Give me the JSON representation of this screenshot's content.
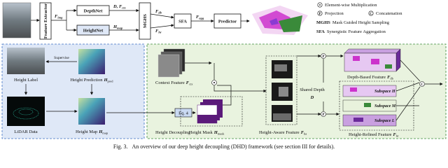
{
  "top": {
    "nodes": {
      "feature_extractor": "Feature Extractor",
      "depthnet": "DepthNet",
      "heightnet": "HeightNet",
      "mghs": "MGHS",
      "sfa": "SFA",
      "predictor": "Predictor"
    },
    "edges": [
      {
        "main": "F",
        "sub": "img"
      },
      {
        "main": "D, F",
        "sub": "ctx"
      },
      {
        "main": "H",
        "sub": "map"
      },
      {
        "main": "F",
        "sub": "db"
      },
      {
        "main": "F",
        "sub": "hr"
      },
      {
        "main": "F",
        "sub": "agg"
      }
    ]
  },
  "legend": {
    "multiplication": "Element-wise Multiplication",
    "projection": {
      "symbol": "P",
      "text": "Projection"
    },
    "concatenation": {
      "symbol": "C",
      "text": "Concatenation"
    },
    "mghs": {
      "abbr": "MGHS",
      "text": "Mask Guided Height Sampling"
    },
    "sfa": {
      "abbr": "SFA",
      "text": "Synergistic Feature Aggregation"
    }
  },
  "left": {
    "height_label": "Height Label",
    "supervise": "Supervise",
    "height_prediction": {
      "text": "Height Prediction",
      "main": "H",
      "sub": "pred"
    },
    "lidar": "LiDAR Data",
    "height_map": {
      "text": "Height Map",
      "main": "H",
      "sub": "map"
    }
  },
  "right": {
    "context": {
      "text": "Context Feature",
      "main": "F",
      "sub": "ctx"
    },
    "eq": "Eq. 4",
    "decoupling": "Height Decoupling",
    "mask": {
      "text": "Height Mask",
      "main": "H",
      "sub": "mask"
    },
    "aware": {
      "text": "Height-Aware Feature",
      "main": "F",
      "sub": "ha"
    },
    "shared_depth": "Shared Depth",
    "depth_symbol": "D",
    "ops": [
      "P",
      "P",
      "C"
    ],
    "depth_based": {
      "text": "Depth-Based Feature",
      "main": "F",
      "sub": "db"
    },
    "subspaces": [
      "Subspace H",
      "Subspace M",
      "Subspace L"
    ],
    "refined": {
      "text": "Height-Refined Feature",
      "main": "F",
      "sub": "hr"
    }
  },
  "caption": {
    "label": "Fig. 3.",
    "text": "An overview of our deep height decoupling (DHD) framework (see section III for details)."
  }
}
